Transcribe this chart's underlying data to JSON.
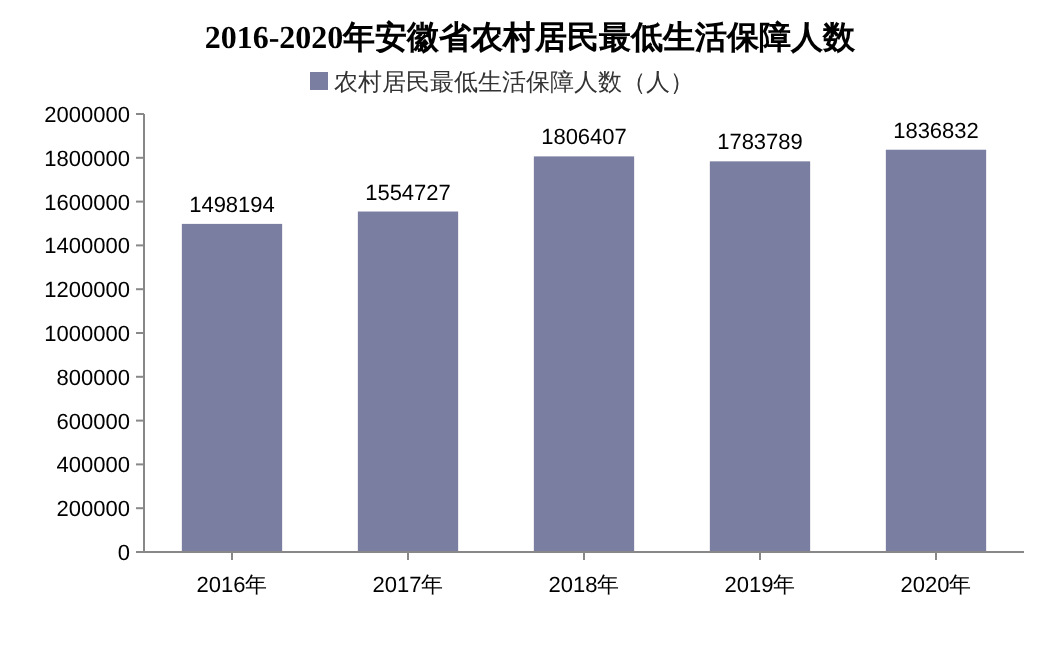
{
  "chart_data": {
    "type": "bar",
    "title": "2016-2020年安徽省农村居民最低生活保障人数",
    "categories": [
      "2016年",
      "2017年",
      "2018年",
      "2019年",
      "2020年"
    ],
    "series": [
      {
        "name": "农村居民最低生活保障人数（人）",
        "color": "#7a7fa1",
        "values": [
          1498194,
          1554727,
          1806407,
          1783789,
          1836832
        ]
      }
    ],
    "ylim": [
      0,
      2000000
    ],
    "yticks": [
      0,
      200000,
      400000,
      600000,
      800000,
      1000000,
      1200000,
      1400000,
      1600000,
      1800000,
      2000000
    ],
    "data_labels": true,
    "legend": "top",
    "grid": false
  }
}
